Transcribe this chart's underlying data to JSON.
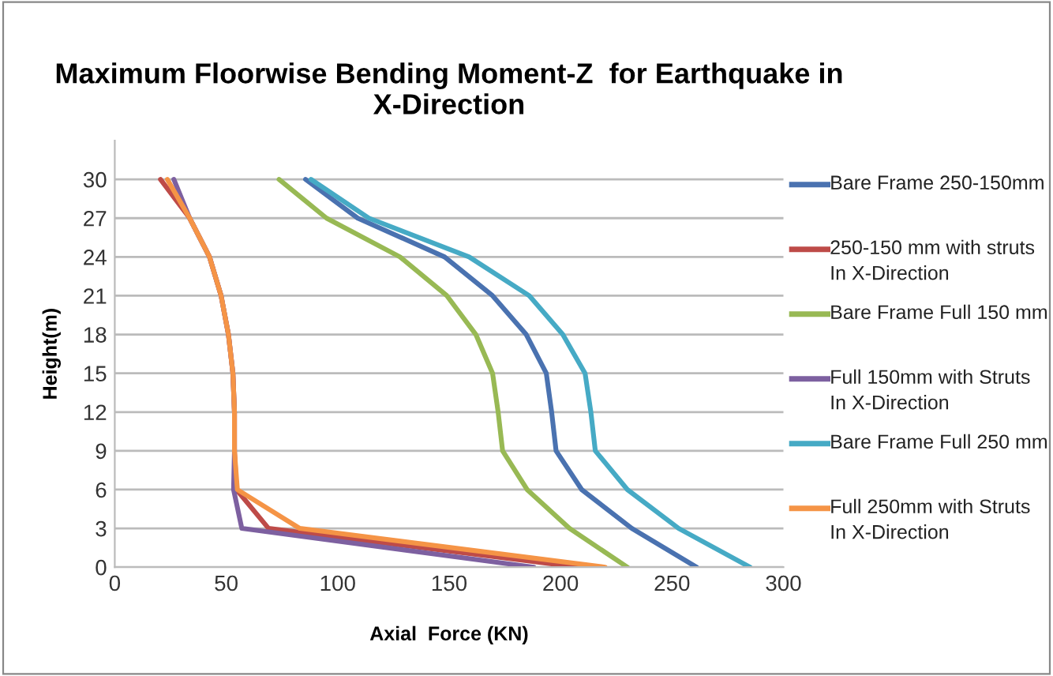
{
  "chart_data": {
    "type": "line",
    "title": "Maximum Floorwise Bending Moment-Z  for Earthquake in X-Direction",
    "xlabel": "Axial  Force (KN)",
    "ylabel": "Height(m)",
    "xlim": [
      0,
      300
    ],
    "xticks": [
      0,
      50,
      100,
      150,
      200,
      250,
      300
    ],
    "ylim": [
      0,
      33
    ],
    "yticks": [
      0,
      3,
      6,
      9,
      12,
      15,
      18,
      21,
      24,
      27,
      30
    ],
    "grid": "y",
    "legend": "right",
    "marker": "none",
    "line_style": "solid",
    "series": [
      {
        "name": "Bare Frame 250-150mm",
        "color": "#4a72b0",
        "x": [
          261,
          232,
          209.5,
          198,
          196,
          193.6,
          184.6,
          169.5,
          148,
          109,
          85.6
        ],
        "values": [
          0,
          3,
          6,
          9,
          12,
          15,
          18,
          21,
          24,
          27,
          30
        ]
      },
      {
        "name": "250-150 mm with struts In X-Direction",
        "color": "#be4b48",
        "x": [
          208,
          69,
          54.6,
          53.7,
          53.7,
          53,
          51,
          47.7,
          42.5,
          33.6,
          20.5
        ],
        "values": [
          0,
          3,
          6,
          9,
          12,
          15,
          18,
          21,
          24,
          27,
          30
        ]
      },
      {
        "name": "Bare Frame Full 150 mm",
        "color": "#98b954",
        "x": [
          230,
          204,
          185,
          174,
          172,
          169.5,
          162,
          149,
          128,
          95,
          73.7
        ],
        "values": [
          0,
          3,
          6,
          9,
          12,
          15,
          18,
          21,
          24,
          27,
          30
        ]
      },
      {
        "name": "Full 150mm with Struts In X-Direction",
        "color": "#7d60a0",
        "x": [
          188,
          57,
          53.3,
          53.7,
          53.7,
          53,
          51,
          47.7,
          42.5,
          33.6,
          26.5
        ],
        "values": [
          0,
          3,
          6,
          9,
          12,
          15,
          18,
          21,
          24,
          27,
          30
        ]
      },
      {
        "name": "Bare Frame Full 250 mm",
        "color": "#46aac5",
        "x": [
          285,
          253,
          230,
          215.6,
          213.6,
          211,
          201,
          186,
          159,
          114,
          88
        ],
        "values": [
          0,
          3,
          6,
          9,
          12,
          15,
          18,
          21,
          24,
          27,
          30
        ]
      },
      {
        "name": "Full 250mm with Struts In X-Direction",
        "color": "#f59446",
        "x": [
          220,
          83,
          55,
          53.7,
          53.7,
          53,
          51,
          47.7,
          42.5,
          33.6,
          23.6
        ],
        "values": [
          0,
          3,
          6,
          9,
          12,
          15,
          18,
          21,
          24,
          27,
          30
        ]
      }
    ]
  }
}
